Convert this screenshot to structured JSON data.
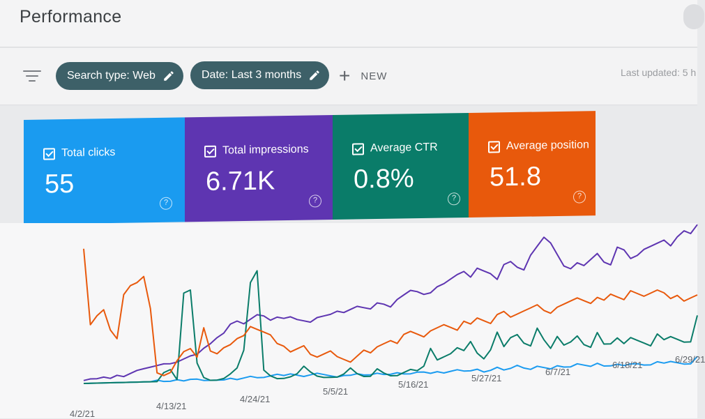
{
  "header": {
    "title": "Performance"
  },
  "toolbar": {
    "chips": [
      {
        "label": "Search type: Web"
      },
      {
        "label": "Date: Last 3 months"
      }
    ],
    "new_label": "NEW",
    "last_updated": "Last updated: 5 h"
  },
  "metrics": [
    {
      "label": "Total clicks",
      "value": "55",
      "color": "#1a9bf0",
      "icon": "question-icon"
    },
    {
      "label": "Total impressions",
      "value": "6.71K",
      "color": "#5e35b1",
      "icon": "question-icon"
    },
    {
      "label": "Average CTR",
      "value": "0.8%",
      "color": "#0a7c69",
      "icon": "question-icon"
    },
    {
      "label": "Average position",
      "value": "51.8",
      "color": "#e8590c",
      "icon": "question-icon"
    }
  ],
  "chart_data": {
    "type": "line",
    "x_ticks": [
      "4/2/21",
      "4/13/21",
      "4/24/21",
      "5/5/21",
      "5/16/21",
      "5/27/21",
      "6/7/21",
      "6/18/21",
      "6/29/21"
    ],
    "series": [
      {
        "color": "#1a9bf0",
        "values": [
          0,
          0,
          0,
          0,
          0,
          0,
          0,
          0,
          0,
          0,
          0,
          1,
          0,
          0,
          1,
          0,
          1,
          1,
          0,
          0,
          0,
          0,
          1,
          0,
          1,
          2,
          1,
          1,
          2,
          3,
          2,
          3,
          2,
          1,
          2,
          3,
          2,
          1,
          0,
          1,
          1,
          2,
          1,
          1,
          2,
          1,
          1,
          2,
          1,
          1,
          2,
          2,
          1,
          2,
          1,
          2,
          3,
          2,
          2,
          3,
          1,
          2,
          4,
          2,
          3,
          5,
          3,
          2,
          4,
          3,
          2,
          4,
          3,
          3,
          5,
          4,
          3,
          5,
          3,
          3,
          4,
          3,
          4,
          4,
          3,
          3,
          5,
          4,
          5,
          4,
          3,
          3,
          8
        ]
      },
      {
        "color": "#5e35b1",
        "values": [
          2,
          3,
          3,
          4,
          3,
          5,
          4,
          6,
          8,
          9,
          10,
          11,
          12,
          12,
          13,
          15,
          17,
          18,
          22,
          25,
          29,
          32,
          38,
          40,
          38,
          41,
          44,
          43,
          40,
          42,
          41,
          42,
          40,
          39,
          38,
          41,
          42,
          43,
          45,
          44,
          46,
          48,
          47,
          46,
          50,
          49,
          47,
          52,
          55,
          58,
          57,
          55,
          56,
          60,
          62,
          65,
          68,
          70,
          66,
          72,
          70,
          68,
          64,
          74,
          76,
          72,
          70,
          80,
          86,
          92,
          88,
          80,
          72,
          70,
          74,
          72,
          76,
          80,
          74,
          72,
          84,
          82,
          76,
          78,
          82,
          84,
          86,
          88,
          84,
          90,
          94,
          92,
          98
        ]
      },
      {
        "color": "#0a7c69",
        "values": [
          0,
          0,
          0,
          0,
          0,
          0,
          0,
          0,
          0,
          0,
          0,
          0,
          6,
          8,
          1,
          60,
          62,
          12,
          2,
          0,
          0,
          1,
          4,
          8,
          20,
          66,
          74,
          6,
          2,
          0,
          0,
          1,
          3,
          8,
          4,
          1,
          0,
          0,
          0,
          2,
          6,
          2,
          0,
          0,
          5,
          2,
          0,
          0,
          2,
          4,
          3,
          6,
          18,
          10,
          12,
          14,
          18,
          16,
          22,
          14,
          10,
          16,
          28,
          18,
          24,
          26,
          20,
          18,
          30,
          22,
          16,
          24,
          18,
          20,
          24,
          18,
          16,
          26,
          18,
          18,
          22,
          18,
          22,
          20,
          18,
          16,
          24,
          20,
          22,
          20,
          18,
          18,
          36
        ]
      },
      {
        "color": "#e8590c",
        "values": [
          92,
          40,
          46,
          50,
          36,
          30,
          60,
          66,
          68,
          72,
          50,
          6,
          4,
          6,
          14,
          20,
          22,
          16,
          36,
          20,
          18,
          22,
          24,
          28,
          30,
          36,
          34,
          32,
          30,
          24,
          22,
          18,
          20,
          22,
          16,
          14,
          16,
          18,
          14,
          12,
          10,
          14,
          18,
          16,
          20,
          22,
          24,
          22,
          28,
          30,
          28,
          26,
          30,
          32,
          34,
          32,
          30,
          36,
          34,
          38,
          36,
          34,
          40,
          42,
          38,
          40,
          42,
          44,
          46,
          42,
          40,
          44,
          46,
          48,
          50,
          48,
          46,
          50,
          48,
          52,
          50,
          48,
          54,
          52,
          50,
          52,
          54,
          52,
          48,
          50,
          46,
          48,
          50
        ]
      }
    ]
  }
}
